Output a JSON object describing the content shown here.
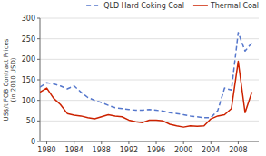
{
  "chart_data": {
    "type": "line",
    "y_label": "US$/t FOB Contract Prices\n(in 2010 USD)",
    "x": [
      1979,
      1980,
      1981,
      1982,
      1983,
      1984,
      1985,
      1986,
      1987,
      1988,
      1989,
      1990,
      1991,
      1992,
      1993,
      1994,
      1995,
      1996,
      1997,
      1998,
      1999,
      2000,
      2001,
      2002,
      2003,
      2004,
      2005,
      2006,
      2007,
      2008,
      2009,
      2010
    ],
    "series": [
      {
        "name": "QLD Hard Coking Coal",
        "color": "#5577cc",
        "line_style": "dashed",
        "values": [
          132,
          143,
          140,
          135,
          128,
          135,
          120,
          107,
          100,
          95,
          88,
          82,
          80,
          78,
          76,
          76,
          78,
          76,
          74,
          70,
          68,
          65,
          62,
          60,
          58,
          58,
          75,
          130,
          125,
          265,
          220,
          240
        ]
      },
      {
        "name": "Thermal Coal",
        "color": "#cc2200",
        "line_style": "solid",
        "values": [
          120,
          130,
          105,
          90,
          68,
          64,
          62,
          58,
          55,
          60,
          65,
          62,
          60,
          52,
          48,
          46,
          52,
          52,
          50,
          42,
          38,
          35,
          38,
          37,
          38,
          55,
          62,
          65,
          80,
          195,
          70,
          120
        ]
      }
    ],
    "xlim": [
      1979,
      2011
    ],
    "ylim": [
      0,
      300
    ],
    "xticks": [
      1980,
      1984,
      1988,
      1992,
      1996,
      2000,
      2004,
      2008
    ],
    "yticks": [
      0,
      50,
      100,
      150,
      200,
      250,
      300
    ],
    "grid": true,
    "legend": "upper right"
  }
}
